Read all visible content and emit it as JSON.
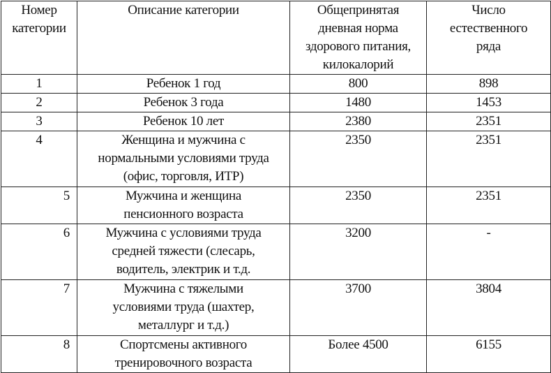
{
  "headers": [
    [
      "Номер",
      "категории"
    ],
    [
      "Описание категории"
    ],
    [
      "Общепринятая",
      "дневная норма",
      "здорового питания,",
      "килокалорий"
    ],
    [
      "Число",
      "естественного",
      "ряда"
    ]
  ],
  "rows": [
    {
      "num": "1",
      "desc": [
        "Ребенок 1 год"
      ],
      "norm": "800",
      "series": "898"
    },
    {
      "num": "2",
      "desc": [
        "Ребенок 3 года"
      ],
      "norm": "1480",
      "series": "1453"
    },
    {
      "num": "3",
      "desc": [
        "Ребенок 10 лет"
      ],
      "norm": "2380",
      "series": "2351"
    },
    {
      "num": "4",
      "desc": [
        "Женщина и мужчина  с",
        "нормальными условиями труда",
        "(офис, торговля, ИТР)"
      ],
      "norm": "2350",
      "series": "2351"
    },
    {
      "num": "5",
      "desc": [
        "Мужчина и женщина",
        "пенсионного возраста"
      ],
      "norm": "2350",
      "series": "2351"
    },
    {
      "num": "6",
      "desc": [
        "Мужчина с условиями труда",
        "средней тяжести (слесарь,",
        "водитель, электрик и т.д."
      ],
      "norm": "3200",
      "series": "-"
    },
    {
      "num": "7",
      "desc": [
        "Мужчина с тяжелыми",
        "условиями труда (шахтер,",
        "металлург и т.д.)"
      ],
      "norm": "3700",
      "series": "3804"
    },
    {
      "num": "8",
      "desc": [
        "Спортсмены активного",
        "тренировочного возраста"
      ],
      "norm": "Более 4500",
      "series": "6155"
    }
  ]
}
